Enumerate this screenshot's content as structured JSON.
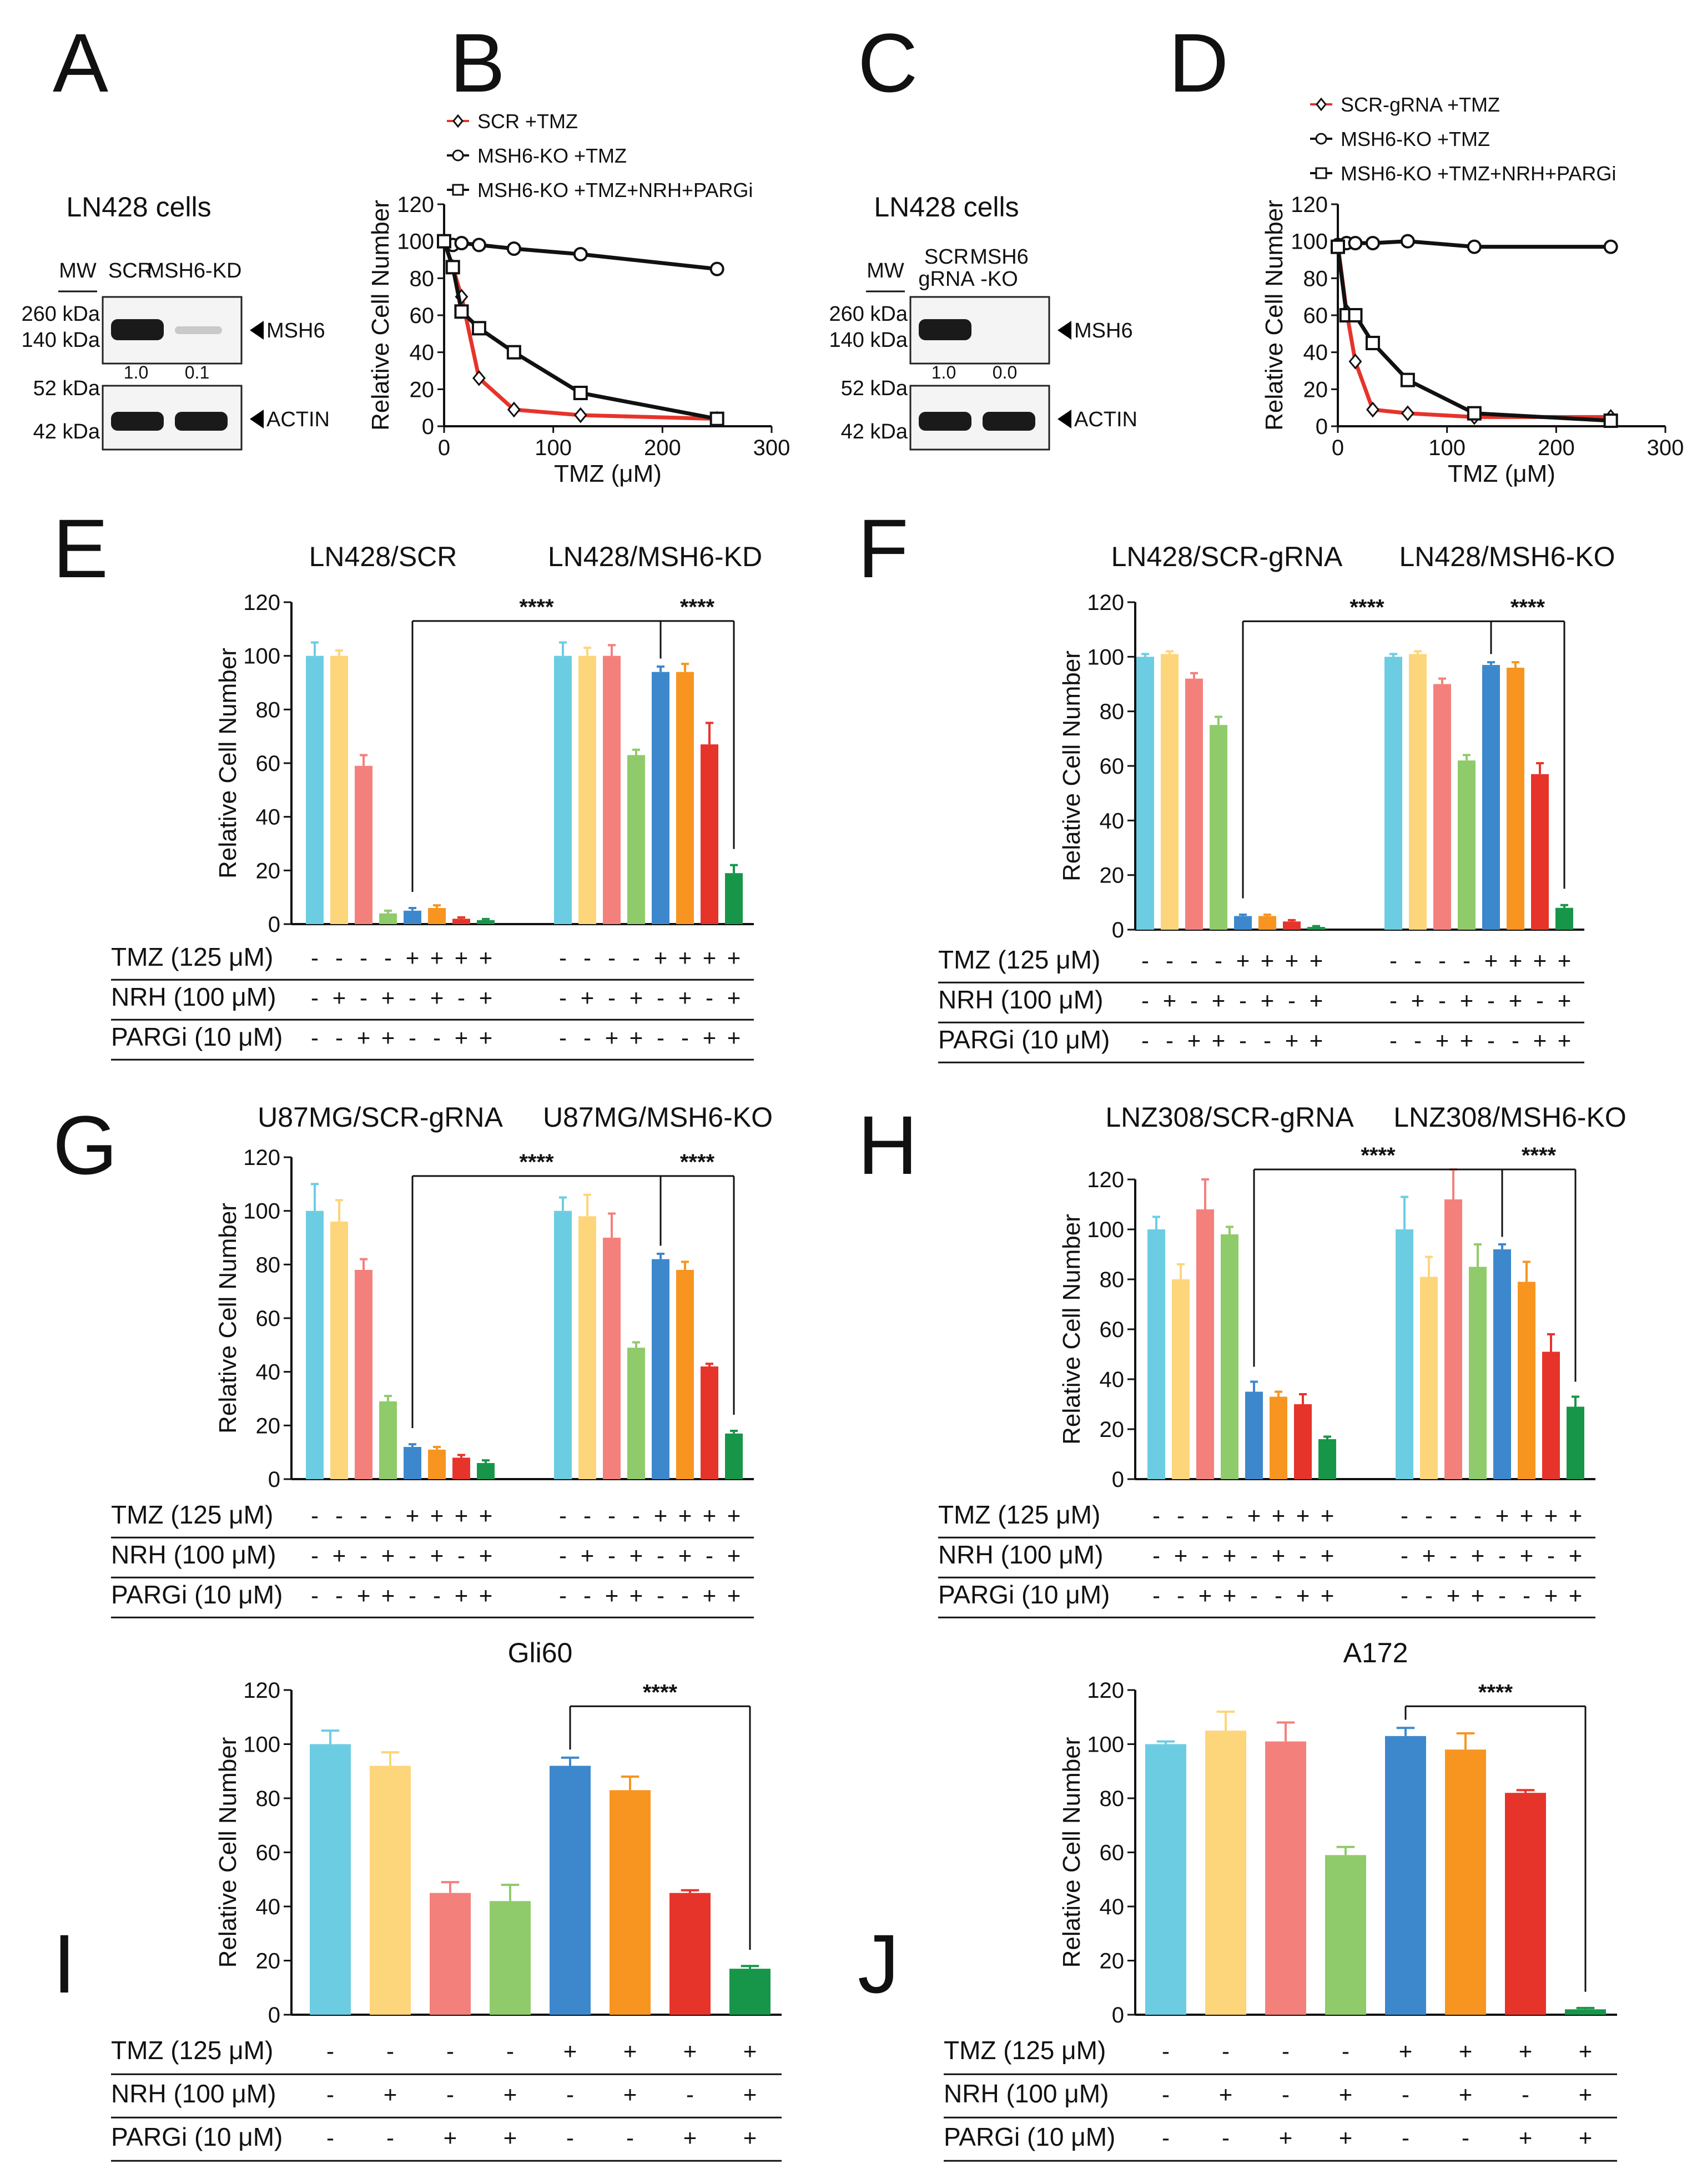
{
  "panel_letters": [
    "A",
    "B",
    "C",
    "D",
    "E",
    "F",
    "G",
    "H",
    "I",
    "J"
  ],
  "colors": [
    "#6ccde2",
    "#fdd57a",
    "#f4807c",
    "#8fcb6a",
    "#3d88cc",
    "#f79520",
    "#e6342b",
    "#179649"
  ],
  "condition_labels": {
    "tmz": "TMZ (125 μM)",
    "nrh": "NRH (100 μM)",
    "pargi": "PARGi (10 μM)"
  },
  "plus": "+",
  "minus": "-",
  "significance": "****",
  "ylabel": "Relative Cell Number",
  "westerns": {
    "A": {
      "title": "LN428 cells",
      "mw": "MW",
      "lanes": [
        "SCR",
        "MSH6-KD"
      ],
      "mw_top": [
        "260 kDa",
        "140 kDa"
      ],
      "mw_bottom": [
        "52 kDa",
        "42 kDa"
      ],
      "target": "MSH6",
      "control": "ACTIN",
      "ratios": [
        "1.0",
        "0.1"
      ]
    },
    "C": {
      "title": "LN428 cells",
      "mw": "MW",
      "lanes": [
        "SCR",
        "MSH6"
      ],
      "lanes2": [
        "gRNA",
        "-KO"
      ],
      "mw_top": [
        "260 kDa",
        "140 kDa"
      ],
      "mw_bottom": [
        "52 kDa",
        "42 kDa"
      ],
      "target": "MSH6",
      "control": "ACTIN",
      "ratios": [
        "1.0",
        "0.0"
      ]
    }
  },
  "chart_data": [
    {
      "panel": "B",
      "type": "scatter",
      "xlabel": "TMZ (μM)",
      "ylabel": "Relative Cell Number",
      "xlim": [
        0,
        300
      ],
      "ylim": [
        0,
        120
      ],
      "xticks": [
        0,
        100,
        200,
        300
      ],
      "yticks": [
        0,
        20,
        40,
        60,
        80,
        100,
        120
      ],
      "series": [
        {
          "name": "SCR +TMZ",
          "marker": "diamond",
          "x": [
            0,
            8,
            16,
            32,
            64,
            125,
            250
          ],
          "y": [
            100,
            86,
            70,
            26,
            9,
            6,
            4
          ]
        },
        {
          "name": "MSH6-KO +TMZ",
          "marker": "circle",
          "x": [
            0,
            8,
            16,
            32,
            64,
            125,
            250
          ],
          "y": [
            100,
            98,
            99,
            98,
            96,
            93,
            85
          ]
        },
        {
          "name": "MSH6-KO +TMZ+NRH+PARGi",
          "marker": "square",
          "x": [
            0,
            8,
            16,
            32,
            64,
            125,
            250
          ],
          "y": [
            100,
            86,
            62,
            53,
            40,
            18,
            4
          ]
        }
      ]
    },
    {
      "panel": "D",
      "type": "scatter",
      "xlabel": "TMZ (μM)",
      "ylabel": "Relative Cell Number",
      "xlim": [
        0,
        300
      ],
      "ylim": [
        0,
        120
      ],
      "xticks": [
        0,
        100,
        200,
        300
      ],
      "yticks": [
        0,
        20,
        40,
        60,
        80,
        100,
        120
      ],
      "series": [
        {
          "name": "SCR-gRNA +TMZ",
          "marker": "diamond",
          "x": [
            0,
            8,
            16,
            32,
            64,
            125,
            250
          ],
          "y": [
            98,
            62,
            35,
            9,
            7,
            5,
            5
          ]
        },
        {
          "name": "MSH6-KO +TMZ",
          "marker": "circle",
          "x": [
            0,
            8,
            16,
            32,
            64,
            125,
            250
          ],
          "y": [
            98,
            99,
            99,
            99,
            100,
            97,
            97
          ]
        },
        {
          "name": "MSH6-KO +TMZ+NRH+PARGi",
          "marker": "square",
          "x": [
            0,
            8,
            16,
            32,
            64,
            125,
            250
          ],
          "y": [
            97,
            60,
            60,
            45,
            25,
            7,
            3
          ]
        }
      ]
    },
    {
      "panel": "E",
      "type": "bar",
      "titles": [
        "LN428/SCR",
        "LN428/MSH6-KD"
      ],
      "ylabel": "Relative Cell Number",
      "ylim": [
        0,
        120
      ],
      "yticks": [
        0,
        20,
        40,
        60,
        80,
        100,
        120
      ],
      "values": [
        100,
        100,
        59,
        4,
        5,
        6,
        2,
        1.5,
        100,
        100,
        100,
        63,
        94,
        94,
        67,
        19
      ],
      "errors": [
        5,
        2,
        4,
        1,
        1,
        1,
        0.5,
        0.4,
        5,
        3,
        4,
        2,
        2,
        3,
        8,
        3
      ],
      "tmz": [
        "-",
        "-",
        "-",
        "-",
        "+",
        "+",
        "+",
        "+",
        "-",
        "-",
        "-",
        "-",
        "+",
        "+",
        "+",
        "+"
      ],
      "nrh": [
        "-",
        "+",
        "-",
        "+",
        "-",
        "+",
        "-",
        "+",
        "-",
        "+",
        "-",
        "+",
        "-",
        "+",
        "-",
        "+"
      ],
      "pargi": [
        "-",
        "-",
        "+",
        "+",
        "-",
        "-",
        "+",
        "+",
        "-",
        "-",
        "+",
        "+",
        "-",
        "-",
        "+",
        "+"
      ]
    },
    {
      "panel": "F",
      "type": "bar",
      "titles": [
        "LN428/SCR-gRNA",
        "LN428/MSH6-KO"
      ],
      "ylabel": "Relative Cell Number",
      "ylim": [
        0,
        120
      ],
      "yticks": [
        0,
        20,
        40,
        60,
        80,
        100,
        120
      ],
      "values": [
        100,
        101,
        92,
        75,
        5,
        5,
        3,
        1,
        100,
        101,
        90,
        62,
        97,
        96,
        57,
        8
      ],
      "errors": [
        1,
        1,
        2,
        3,
        0.5,
        0.5,
        0.5,
        0.3,
        1,
        1,
        2,
        2,
        1,
        2,
        4,
        1
      ],
      "tmz": [
        "-",
        "-",
        "-",
        "-",
        "+",
        "+",
        "+",
        "+",
        "-",
        "-",
        "-",
        "-",
        "+",
        "+",
        "+",
        "+"
      ],
      "nrh": [
        "-",
        "+",
        "-",
        "+",
        "-",
        "+",
        "-",
        "+",
        "-",
        "+",
        "-",
        "+",
        "-",
        "+",
        "-",
        "+"
      ],
      "pargi": [
        "-",
        "-",
        "+",
        "+",
        "-",
        "-",
        "+",
        "+",
        "-",
        "-",
        "+",
        "+",
        "-",
        "-",
        "+",
        "+"
      ]
    },
    {
      "panel": "G",
      "type": "bar",
      "titles": [
        "U87MG/SCR-gRNA",
        "U87MG/MSH6-KO"
      ],
      "ylabel": "Relative Cell Number",
      "ylim": [
        0,
        120
      ],
      "yticks": [
        0,
        20,
        40,
        60,
        80,
        100,
        120
      ],
      "values": [
        100,
        96,
        78,
        29,
        12,
        11,
        8,
        6,
        100,
        98,
        90,
        49,
        82,
        78,
        42,
        17
      ],
      "errors": [
        10,
        8,
        4,
        2,
        1,
        1,
        1,
        1,
        5,
        8,
        9,
        2,
        2,
        3,
        1,
        1
      ],
      "tmz": [
        "-",
        "-",
        "-",
        "-",
        "+",
        "+",
        "+",
        "+",
        "-",
        "-",
        "-",
        "-",
        "+",
        "+",
        "+",
        "+"
      ],
      "nrh": [
        "-",
        "+",
        "-",
        "+",
        "-",
        "+",
        "-",
        "+",
        "-",
        "+",
        "-",
        "+",
        "-",
        "+",
        "-",
        "+"
      ],
      "pargi": [
        "-",
        "-",
        "+",
        "+",
        "-",
        "-",
        "+",
        "+",
        "-",
        "-",
        "+",
        "+",
        "-",
        "-",
        "+",
        "+"
      ]
    },
    {
      "panel": "H",
      "type": "bar",
      "titles": [
        "LNZ308/SCR-gRNA",
        "LNZ308/MSH6-KO"
      ],
      "ylabel": "Relative Cell Number",
      "ylim": [
        0,
        120
      ],
      "yticks": [
        0,
        20,
        40,
        60,
        80,
        100,
        120
      ],
      "values": [
        100,
        80,
        108,
        98,
        35,
        33,
        30,
        16,
        100,
        81,
        112,
        85,
        92,
        79,
        51,
        29
      ],
      "errors": [
        5,
        6,
        12,
        3,
        4,
        2,
        4,
        1,
        13,
        8,
        12,
        9,
        2,
        8,
        7,
        4
      ],
      "tmz": [
        "-",
        "-",
        "-",
        "-",
        "+",
        "+",
        "+",
        "+",
        "-",
        "-",
        "-",
        "-",
        "+",
        "+",
        "+",
        "+"
      ],
      "nrh": [
        "-",
        "+",
        "-",
        "+",
        "-",
        "+",
        "-",
        "+",
        "-",
        "+",
        "-",
        "+",
        "-",
        "+",
        "-",
        "+"
      ],
      "pargi": [
        "-",
        "-",
        "+",
        "+",
        "-",
        "-",
        "+",
        "+",
        "-",
        "-",
        "+",
        "+",
        "-",
        "-",
        "+",
        "+"
      ]
    },
    {
      "panel": "I",
      "type": "bar",
      "titles": [
        "Gli60"
      ],
      "ylabel": "Relative Cell Number",
      "ylim": [
        0,
        120
      ],
      "yticks": [
        0,
        20,
        40,
        60,
        80,
        100,
        120
      ],
      "values": [
        100,
        92,
        45,
        42,
        92,
        83,
        45,
        17
      ],
      "errors": [
        5,
        5,
        4,
        6,
        3,
        5,
        1,
        1
      ],
      "tmz": [
        "-",
        "-",
        "-",
        "-",
        "+",
        "+",
        "+",
        "+"
      ],
      "nrh": [
        "-",
        "+",
        "-",
        "+",
        "-",
        "+",
        "-",
        "+"
      ],
      "pargi": [
        "-",
        "-",
        "+",
        "+",
        "-",
        "-",
        "+",
        "+"
      ]
    },
    {
      "panel": "J",
      "type": "bar",
      "titles": [
        "A172"
      ],
      "ylabel": "Relative Cell Number",
      "ylim": [
        0,
        120
      ],
      "yticks": [
        0,
        20,
        40,
        60,
        80,
        100,
        120
      ],
      "values": [
        100,
        105,
        101,
        59,
        103,
        98,
        82,
        2
      ],
      "errors": [
        1,
        7,
        7,
        3,
        3,
        6,
        1,
        0.5
      ],
      "tmz": [
        "-",
        "-",
        "-",
        "-",
        "+",
        "+",
        "+",
        "+"
      ],
      "nrh": [
        "-",
        "+",
        "-",
        "+",
        "-",
        "+",
        "-",
        "+"
      ],
      "pargi": [
        "-",
        "-",
        "+",
        "+",
        "-",
        "-",
        "+",
        "+"
      ]
    }
  ]
}
